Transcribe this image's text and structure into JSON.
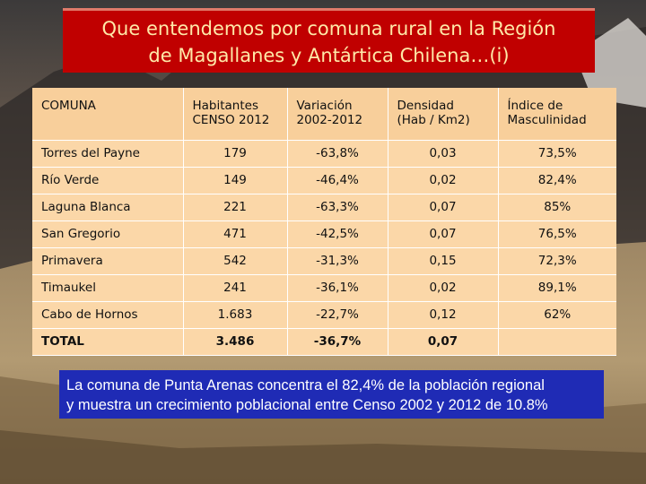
{
  "title": {
    "line1": "Que entendemos por comuna rural en la Región",
    "line2": "de Magallanes y Antártica Chilena…(i)"
  },
  "table": {
    "headers": [
      [
        "COMUNA",
        ""
      ],
      [
        "Habitantes",
        "CENSO 2012"
      ],
      [
        "Variación",
        "2002-2012"
      ],
      [
        "Densidad",
        "(Hab / Km2)"
      ],
      [
        "Índice de",
        "Masculinidad"
      ]
    ],
    "rows": [
      [
        "Torres del Payne",
        "179",
        "-63,8%",
        "0,03",
        "73,5%"
      ],
      [
        "Río Verde",
        "149",
        "-46,4%",
        "0,02",
        "82,4%"
      ],
      [
        "Laguna Blanca",
        "221",
        "-63,3%",
        "0,07",
        "85%"
      ],
      [
        "San Gregorio",
        "471",
        "-42,5%",
        "0,07",
        "76,5%"
      ],
      [
        "Primavera",
        "542",
        "-31,3%",
        "0,15",
        "72,3%"
      ],
      [
        "Timaukel",
        "241",
        "-36,1%",
        "0,02",
        "89,1%"
      ],
      [
        "Cabo de Hornos",
        "1.683",
        "-22,7%",
        "0,12",
        "62%"
      ]
    ],
    "total": [
      "TOTAL",
      "3.486",
      "-36,7%",
      "0,07",
      ""
    ]
  },
  "note": {
    "line1": "La comuna de Punta Arenas concentra el 82,4% de la población regional",
    "line2": "y muestra un crecimiento poblacional entre Censo 2002 y 2012 de 10.8%"
  },
  "colors": {
    "title_bg": "#c00000",
    "title_text": "#ffe9a8",
    "table_bg": "#fbd7a8",
    "note_bg": "#1f2bb5"
  }
}
